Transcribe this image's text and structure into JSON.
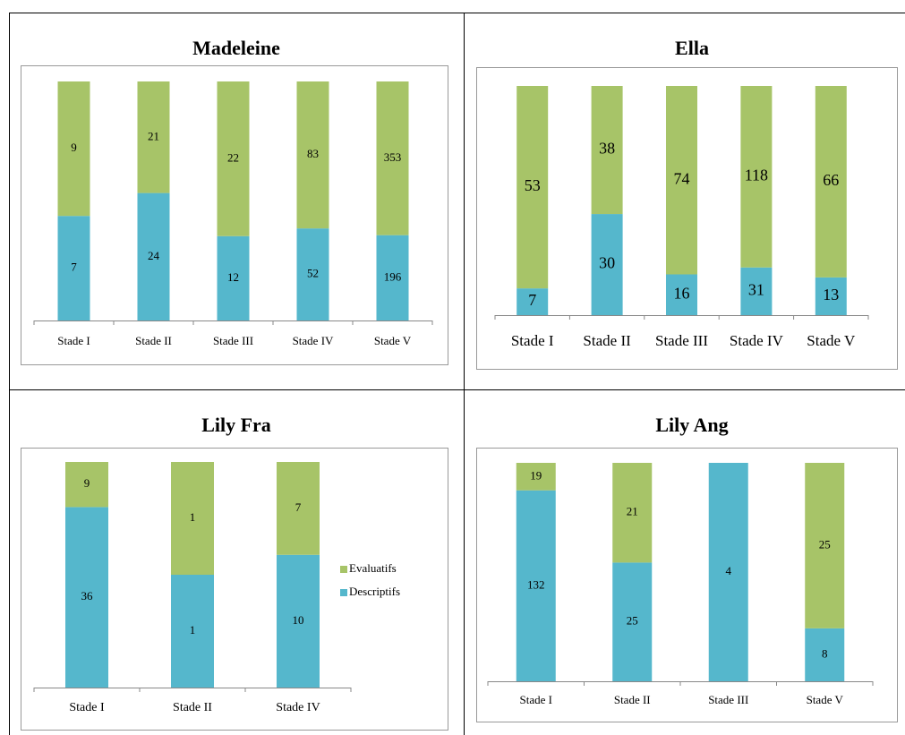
{
  "chart_data": [
    {
      "type": "bar",
      "title": "Madeleine",
      "stacking": "percent",
      "categories": [
        "Stade I",
        "Stade II",
        "Stade III",
        "Stade IV",
        "Stade V"
      ],
      "series": [
        {
          "name": "Descriptifs",
          "color": "#55b7cc",
          "values": [
            7,
            24,
            12,
            52,
            196
          ]
        },
        {
          "name": "Evaluatifs",
          "color": "#a7c468",
          "values": [
            9,
            21,
            22,
            83,
            353
          ]
        }
      ]
    },
    {
      "type": "bar",
      "title": "Ella",
      "stacking": "percent",
      "categories": [
        "Stade I",
        "Stade II",
        "Stade III",
        "Stade IV",
        "Stade V"
      ],
      "series": [
        {
          "name": "Descriptifs",
          "color": "#55b7cc",
          "values": [
            7,
            30,
            16,
            31,
            13
          ]
        },
        {
          "name": "Evaluatifs",
          "color": "#a7c468",
          "values": [
            53,
            38,
            74,
            118,
            66
          ]
        }
      ]
    },
    {
      "type": "bar",
      "title": "Lily Fra",
      "stacking": "percent",
      "legend": "right",
      "categories": [
        "Stade I",
        "Stade II",
        "Stade IV"
      ],
      "series": [
        {
          "name": "Descriptifs",
          "color": "#55b7cc",
          "values": [
            36,
            1,
            10
          ]
        },
        {
          "name": "Evaluatifs",
          "color": "#a7c468",
          "values": [
            9,
            1,
            7
          ]
        }
      ]
    },
    {
      "type": "bar",
      "title": "Lily Ang",
      "stacking": "percent",
      "categories": [
        "Stade I",
        "Stade II",
        "Stade III",
        "Stade V"
      ],
      "series": [
        {
          "name": "Descriptifs",
          "color": "#55b7cc",
          "values": [
            132,
            25,
            4,
            8
          ]
        },
        {
          "name": "Evaluatifs",
          "color": "#a7c468",
          "values": [
            19,
            21,
            null,
            25
          ]
        }
      ]
    }
  ]
}
